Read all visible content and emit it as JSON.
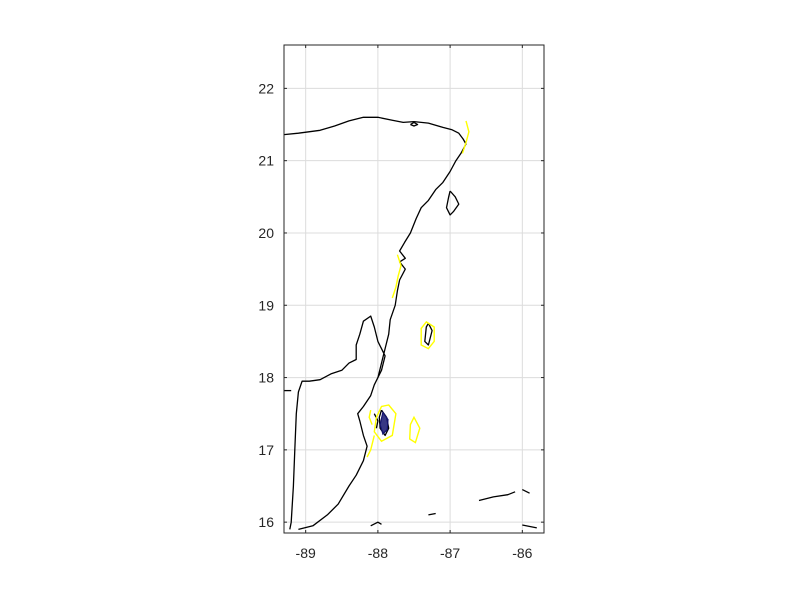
{
  "chart_data": {
    "type": "map",
    "title": "",
    "xlabel": "",
    "ylabel": "",
    "xlim": [
      -89.3,
      -85.7
    ],
    "ylim": [
      15.85,
      22.6
    ],
    "grid": true,
    "x_ticks": [
      {
        "value": -89,
        "label": "-89"
      },
      {
        "value": -88,
        "label": "-88"
      },
      {
        "value": -87,
        "label": "-87"
      },
      {
        "value": -86,
        "label": "-86"
      }
    ],
    "y_ticks": [
      {
        "value": 16,
        "label": "16"
      },
      {
        "value": 17,
        "label": "17"
      },
      {
        "value": 18,
        "label": "18"
      },
      {
        "value": 19,
        "label": "19"
      },
      {
        "value": 20,
        "label": "20"
      },
      {
        "value": 21,
        "label": "21"
      },
      {
        "value": 22,
        "label": "22"
      }
    ],
    "colors": {
      "coastline": "#000000",
      "contour_outer": "#ffff00",
      "contour_inner": "#14146e",
      "grid": "#dcdcdc",
      "axes": "#262626"
    },
    "coastline": [
      [
        [
          -89.3,
          21.36
        ],
        [
          -89.1,
          21.38
        ],
        [
          -88.8,
          21.42
        ],
        [
          -88.6,
          21.48
        ],
        [
          -88.4,
          21.55
        ],
        [
          -88.2,
          21.6
        ],
        [
          -88.0,
          21.6
        ],
        [
          -87.8,
          21.56
        ],
        [
          -87.65,
          21.53
        ],
        [
          -87.5,
          21.54
        ],
        [
          -87.3,
          21.52
        ],
        [
          -87.1,
          21.46
        ],
        [
          -86.98,
          21.43
        ],
        [
          -86.88,
          21.38
        ],
        [
          -86.82,
          21.3
        ],
        [
          -86.78,
          21.23
        ],
        [
          -86.85,
          21.1
        ],
        [
          -86.92,
          21.0
        ],
        [
          -87.0,
          20.85
        ],
        [
          -87.1,
          20.7
        ],
        [
          -87.2,
          20.6
        ],
        [
          -87.3,
          20.45
        ],
        [
          -87.4,
          20.35
        ],
        [
          -87.47,
          20.2
        ],
        [
          -87.55,
          20.0
        ],
        [
          -87.63,
          19.87
        ],
        [
          -87.7,
          19.75
        ],
        [
          -87.62,
          19.65
        ],
        [
          -87.7,
          19.6
        ],
        [
          -87.62,
          19.5
        ],
        [
          -87.7,
          19.35
        ],
        [
          -87.73,
          19.2
        ],
        [
          -87.76,
          19.0
        ],
        [
          -87.83,
          18.8
        ],
        [
          -87.85,
          18.6
        ],
        [
          -87.9,
          18.4
        ],
        [
          -87.95,
          18.2
        ],
        [
          -88.0,
          18.0
        ],
        [
          -87.95,
          18.1
        ],
        [
          -87.9,
          18.3
        ],
        [
          -88.0,
          18.5
        ],
        [
          -88.05,
          18.7
        ],
        [
          -88.1,
          18.85
        ],
        [
          -88.2,
          18.78
        ],
        [
          -88.25,
          18.6
        ],
        [
          -88.3,
          18.45
        ],
        [
          -88.3,
          18.25
        ],
        [
          -88.4,
          18.2
        ],
        [
          -88.5,
          18.1
        ],
        [
          -88.65,
          18.05
        ],
        [
          -88.8,
          17.97
        ],
        [
          -88.95,
          17.95
        ],
        [
          -89.05,
          17.95
        ],
        [
          -89.1,
          17.8
        ],
        [
          -89.13,
          17.5
        ],
        [
          -89.15,
          17.0
        ],
        [
          -89.17,
          16.5
        ],
        [
          -89.2,
          16.0
        ],
        [
          -89.22,
          15.9
        ]
      ],
      [
        [
          -89.1,
          15.9
        ],
        [
          -88.9,
          15.95
        ],
        [
          -88.7,
          16.1
        ],
        [
          -88.55,
          16.25
        ],
        [
          -88.4,
          16.5
        ],
        [
          -88.3,
          16.65
        ],
        [
          -88.2,
          16.85
        ],
        [
          -88.15,
          17.05
        ],
        [
          -88.2,
          17.2
        ],
        [
          -88.25,
          17.4
        ],
        [
          -88.28,
          17.5
        ],
        [
          -88.2,
          17.6
        ],
        [
          -88.1,
          17.75
        ],
        [
          -88.05,
          17.9
        ],
        [
          -88.0,
          18.0
        ]
      ],
      [
        [
          -89.3,
          17.82
        ],
        [
          -89.2,
          17.82
        ]
      ],
      [
        [
          -87.0,
          20.58
        ],
        [
          -86.93,
          20.5
        ],
        [
          -86.88,
          20.4
        ],
        [
          -86.95,
          20.3
        ],
        [
          -87.0,
          20.25
        ],
        [
          -87.05,
          20.35
        ],
        [
          -87.02,
          20.5
        ],
        [
          -87.0,
          20.58
        ]
      ],
      [
        [
          -87.55,
          21.5
        ],
        [
          -87.5,
          21.48
        ],
        [
          -87.45,
          21.5
        ],
        [
          -87.5,
          21.53
        ],
        [
          -87.55,
          21.5
        ]
      ],
      [
        [
          -87.3,
          18.75
        ],
        [
          -87.25,
          18.65
        ],
        [
          -87.3,
          18.45
        ],
        [
          -87.35,
          18.5
        ],
        [
          -87.33,
          18.7
        ],
        [
          -87.3,
          18.75
        ]
      ],
      [
        [
          -87.95,
          17.55
        ],
        [
          -87.88,
          17.45
        ],
        [
          -87.85,
          17.3
        ],
        [
          -87.9,
          17.2
        ],
        [
          -87.97,
          17.3
        ],
        [
          -87.98,
          17.45
        ],
        [
          -87.95,
          17.55
        ]
      ],
      [
        [
          -88.05,
          17.5
        ],
        [
          -88.0,
          17.4
        ],
        [
          -88.02,
          17.3
        ]
      ],
      [
        [
          -86.6,
          16.3
        ],
        [
          -86.4,
          16.35
        ],
        [
          -86.2,
          16.38
        ],
        [
          -86.1,
          16.42
        ]
      ],
      [
        [
          -86.0,
          16.45
        ],
        [
          -85.9,
          16.4
        ]
      ],
      [
        [
          -87.3,
          16.1
        ],
        [
          -87.2,
          16.12
        ]
      ],
      [
        [
          -88.1,
          15.95
        ],
        [
          -88.0,
          16.0
        ],
        [
          -87.95,
          15.97
        ]
      ],
      [
        [
          -86.0,
          15.96
        ],
        [
          -85.8,
          15.92
        ]
      ]
    ],
    "contours": [
      {
        "level": "outer",
        "points": [
          [
            -86.78,
            21.55
          ],
          [
            -86.74,
            21.4
          ],
          [
            -86.78,
            21.25
          ],
          [
            -86.83,
            21.1
          ]
        ]
      },
      {
        "level": "outer",
        "points": [
          [
            -87.73,
            19.7
          ],
          [
            -87.68,
            19.55
          ],
          [
            -87.72,
            19.4
          ],
          [
            -87.75,
            19.25
          ],
          [
            -87.8,
            19.1
          ]
        ]
      },
      {
        "level": "outer",
        "points": [
          [
            -87.33,
            18.77
          ],
          [
            -87.22,
            18.7
          ],
          [
            -87.22,
            18.5
          ],
          [
            -87.3,
            18.4
          ],
          [
            -87.4,
            18.45
          ],
          [
            -87.4,
            18.68
          ],
          [
            -87.33,
            18.77
          ]
        ]
      },
      {
        "level": "outer",
        "points": [
          [
            -87.85,
            17.62
          ],
          [
            -87.75,
            17.5
          ],
          [
            -87.8,
            17.2
          ],
          [
            -87.95,
            17.12
          ],
          [
            -88.05,
            17.25
          ],
          [
            -88.02,
            17.45
          ],
          [
            -87.95,
            17.6
          ],
          [
            -87.85,
            17.62
          ]
        ]
      },
      {
        "level": "outer",
        "points": [
          [
            -87.5,
            17.45
          ],
          [
            -87.42,
            17.3
          ],
          [
            -87.48,
            17.1
          ],
          [
            -87.56,
            17.15
          ],
          [
            -87.55,
            17.35
          ],
          [
            -87.5,
            17.45
          ]
        ]
      },
      {
        "level": "outer",
        "points": [
          [
            -88.05,
            17.2
          ],
          [
            -88.1,
            17.0
          ],
          [
            -88.15,
            16.9
          ]
        ]
      },
      {
        "level": "outer",
        "points": [
          [
            -88.1,
            17.55
          ],
          [
            -88.12,
            17.45
          ],
          [
            -88.08,
            17.35
          ]
        ]
      },
      {
        "level": "inner",
        "points": [
          [
            -87.93,
            17.52
          ],
          [
            -87.86,
            17.42
          ],
          [
            -87.87,
            17.28
          ],
          [
            -87.93,
            17.22
          ],
          [
            -87.97,
            17.35
          ],
          [
            -87.93,
            17.52
          ]
        ]
      }
    ]
  }
}
